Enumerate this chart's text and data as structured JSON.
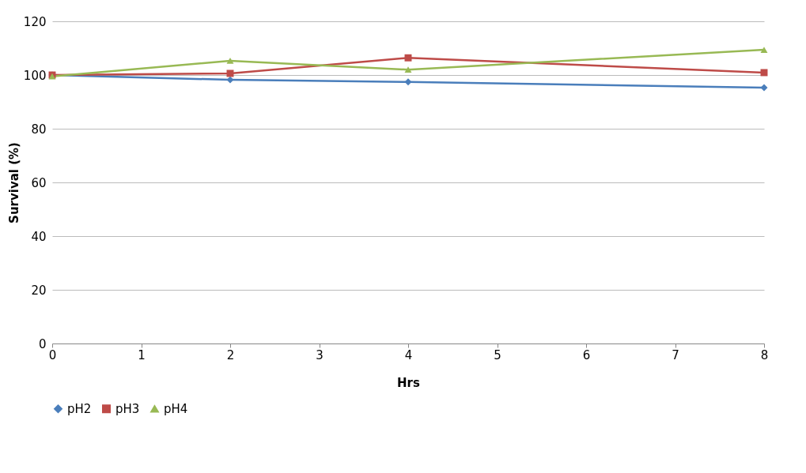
{
  "chart_data": {
    "type": "line",
    "xlabel": "Hrs",
    "ylabel": "Survival (%)",
    "x": [
      0,
      2,
      4,
      8
    ],
    "xlim": [
      0,
      8
    ],
    "xticks": [
      0,
      1,
      2,
      3,
      4,
      5,
      6,
      7,
      8
    ],
    "ylim": [
      0,
      120
    ],
    "yticks": [
      0,
      20,
      40,
      60,
      80,
      100,
      120
    ],
    "grid": "y",
    "legend": "bottom",
    "series": [
      {
        "name": "pH2",
        "color": "#4a7ebb",
        "marker": "diamond",
        "values": [
          100,
          98.2,
          97.4,
          95.3
        ]
      },
      {
        "name": "pH3",
        "color": "#be4b48",
        "marker": "square",
        "values": [
          100,
          100.6,
          106.4,
          100.9
        ]
      },
      {
        "name": "pH4",
        "color": "#98b954",
        "marker": "triangle",
        "values": [
          99.5,
          105.3,
          102,
          109.4
        ]
      }
    ]
  }
}
